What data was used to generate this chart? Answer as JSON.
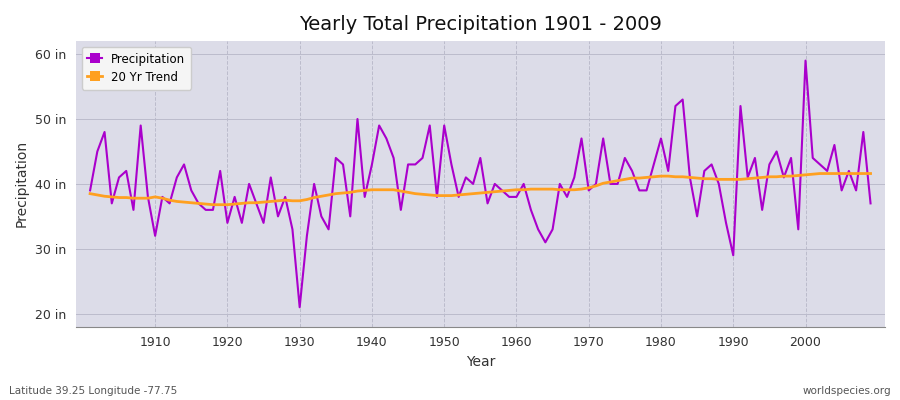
{
  "title": "Yearly Total Precipitation 1901 - 2009",
  "xlabel": "Year",
  "ylabel": "Precipitation",
  "bottom_left_label": "Latitude 39.25 Longitude -77.75",
  "bottom_right_label": "worldspecies.org",
  "ylim": [
    18,
    62
  ],
  "yticks": [
    20,
    30,
    40,
    50,
    60
  ],
  "ytick_labels": [
    "20 in",
    "30 in",
    "40 in",
    "50 in",
    "60 in"
  ],
  "xlim": [
    1899,
    2011
  ],
  "xticks": [
    1910,
    1920,
    1930,
    1940,
    1950,
    1960,
    1970,
    1980,
    1990,
    2000
  ],
  "precip_color": "#AA00CC",
  "trend_color": "#FFA020",
  "plot_bg_color": "#DCDCE8",
  "fig_bg_color": "#FFFFFF",
  "years": [
    1901,
    1902,
    1903,
    1904,
    1905,
    1906,
    1907,
    1908,
    1909,
    1910,
    1911,
    1912,
    1913,
    1914,
    1915,
    1916,
    1917,
    1918,
    1919,
    1920,
    1921,
    1922,
    1923,
    1924,
    1925,
    1926,
    1927,
    1928,
    1929,
    1930,
    1931,
    1932,
    1933,
    1934,
    1935,
    1936,
    1937,
    1938,
    1939,
    1940,
    1941,
    1942,
    1943,
    1944,
    1945,
    1946,
    1947,
    1948,
    1949,
    1950,
    1951,
    1952,
    1953,
    1954,
    1955,
    1956,
    1957,
    1958,
    1959,
    1960,
    1961,
    1962,
    1963,
    1964,
    1965,
    1966,
    1967,
    1968,
    1969,
    1970,
    1971,
    1972,
    1973,
    1974,
    1975,
    1976,
    1977,
    1978,
    1979,
    1980,
    1981,
    1982,
    1983,
    1984,
    1985,
    1986,
    1987,
    1988,
    1989,
    1990,
    1991,
    1992,
    1993,
    1994,
    1995,
    1996,
    1997,
    1998,
    1999,
    2000,
    2001,
    2002,
    2003,
    2004,
    2005,
    2006,
    2007,
    2008,
    2009
  ],
  "precip": [
    39,
    45,
    48,
    37,
    41,
    42,
    36,
    49,
    38,
    32,
    38,
    37,
    41,
    43,
    39,
    37,
    36,
    36,
    42,
    34,
    38,
    34,
    40,
    37,
    34,
    41,
    35,
    38,
    33,
    21,
    32,
    40,
    35,
    33,
    44,
    43,
    35,
    50,
    38,
    43,
    49,
    47,
    44,
    36,
    43,
    43,
    44,
    49,
    38,
    49,
    43,
    38,
    41,
    40,
    44,
    37,
    40,
    39,
    38,
    38,
    40,
    36,
    33,
    31,
    33,
    40,
    38,
    41,
    47,
    39,
    40,
    47,
    40,
    40,
    44,
    42,
    39,
    39,
    43,
    47,
    42,
    52,
    53,
    41,
    35,
    42,
    43,
    40,
    34,
    29,
    52,
    41,
    44,
    36,
    43,
    45,
    41,
    44,
    33,
    59,
    44,
    43,
    42,
    46,
    39,
    42,
    39,
    48,
    37
  ],
  "trend": [
    38.5,
    38.3,
    38.1,
    38.0,
    37.9,
    37.9,
    37.8,
    37.8,
    37.8,
    38.0,
    37.8,
    37.5,
    37.3,
    37.2,
    37.1,
    37.0,
    36.9,
    36.8,
    36.8,
    36.8,
    36.9,
    37.0,
    37.1,
    37.1,
    37.2,
    37.3,
    37.4,
    37.5,
    37.4,
    37.4,
    37.6,
    37.9,
    38.1,
    38.3,
    38.5,
    38.6,
    38.7,
    38.9,
    39.0,
    39.1,
    39.1,
    39.1,
    39.1,
    38.9,
    38.7,
    38.5,
    38.4,
    38.3,
    38.2,
    38.2,
    38.2,
    38.3,
    38.4,
    38.5,
    38.6,
    38.7,
    38.8,
    38.9,
    39.0,
    39.1,
    39.1,
    39.2,
    39.2,
    39.2,
    39.2,
    39.1,
    39.1,
    39.1,
    39.2,
    39.4,
    39.7,
    40.1,
    40.3,
    40.5,
    40.7,
    40.9,
    40.9,
    41.0,
    41.1,
    41.2,
    41.2,
    41.1,
    41.1,
    41.0,
    40.9,
    40.8,
    40.8,
    40.7,
    40.7,
    40.7,
    40.7,
    40.8,
    40.9,
    41.0,
    41.1,
    41.1,
    41.2,
    41.2,
    41.3,
    41.4,
    41.5,
    41.6,
    41.6,
    41.6,
    41.6,
    41.6,
    41.6,
    41.6,
    41.6
  ]
}
